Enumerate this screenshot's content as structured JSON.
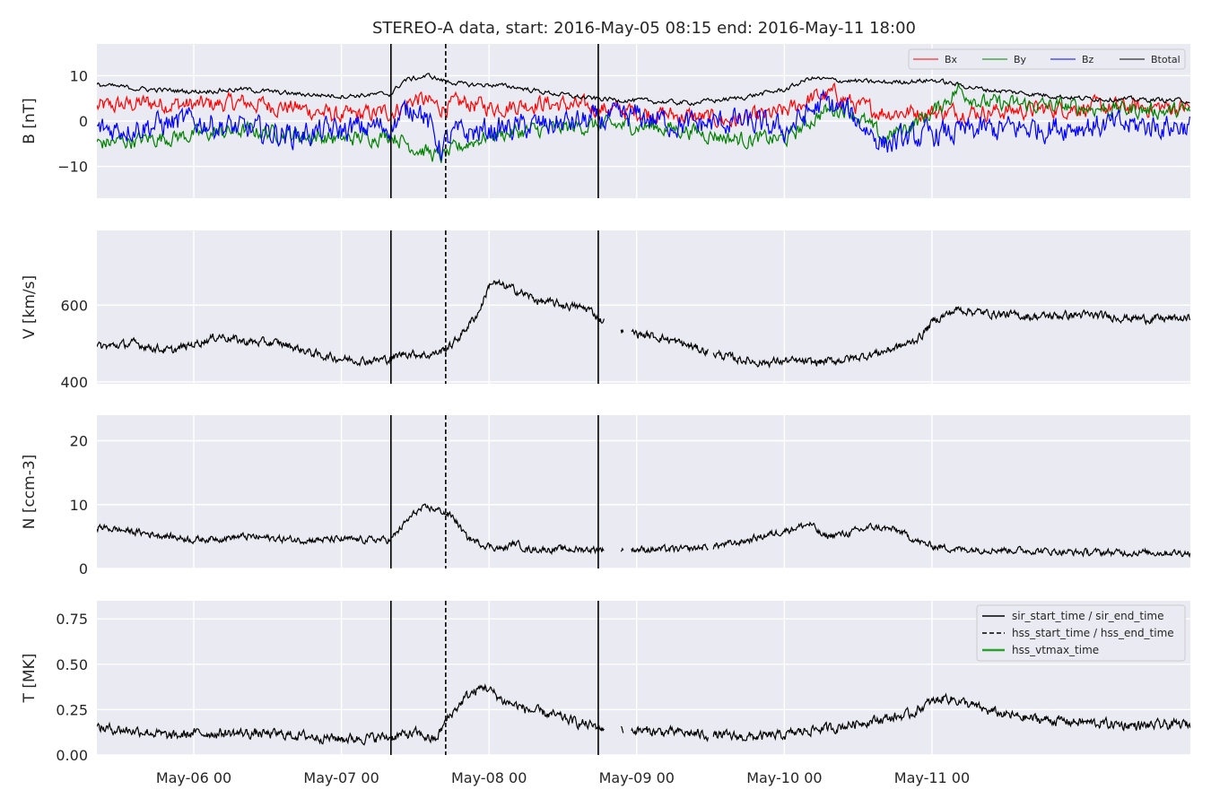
{
  "chart_data": {
    "type": "line",
    "title": "STEREO-A data, start: 2016-May-05 08:15  end: 2016-May-11 18:00",
    "x_range_hours": [
      0,
      177.75
    ],
    "x_ticks": [
      {
        "label": "May-06 00",
        "h": 15.75
      },
      {
        "label": "May-07 00",
        "h": 39.75
      },
      {
        "label": "May-08 00",
        "h": 63.75
      },
      {
        "label": "May-09 00",
        "h": 87.75
      },
      {
        "label": "May-10 00",
        "h": 111.75
      },
      {
        "label": "May-11 00",
        "h": 135.75
      }
    ],
    "events": {
      "sir_start_h": 47.8,
      "hss_start_h": 56.7,
      "sir_end_h": 81.5
    },
    "panels": [
      {
        "id": "B",
        "ylabel": "B [nT]",
        "ylim": [
          -17,
          17
        ],
        "yticks": [
          {
            "v": 10,
            "label": "10"
          },
          {
            "v": 0,
            "label": "0"
          },
          {
            "v": -10,
            "label": "−10"
          }
        ],
        "legend": [
          "Bx",
          "By",
          "Bz",
          "Btotal"
        ],
        "series": [
          {
            "name": "Bx",
            "color": "#ff0000",
            "points": [
              [
                0,
                3
              ],
              [
                8,
                4
              ],
              [
                16,
                3.5
              ],
              [
                24,
                4
              ],
              [
                32,
                3
              ],
              [
                40,
                1
              ],
              [
                47.8,
                2
              ],
              [
                52,
                5
              ],
              [
                56,
                3
              ],
              [
                60,
                4
              ],
              [
                64,
                3
              ],
              [
                72,
                4
              ],
              [
                80,
                3
              ],
              [
                88,
                2
              ],
              [
                96,
                1
              ],
              [
                104,
                0
              ],
              [
                112,
                2
              ],
              [
                116,
                5
              ],
              [
                120,
                6
              ],
              [
                124,
                3
              ],
              [
                128,
                2
              ],
              [
                136,
                2
              ],
              [
                144,
                2
              ],
              [
                160,
                3
              ],
              [
                177.75,
                3
              ]
            ]
          },
          {
            "name": "By",
            "color": "#008000",
            "points": [
              [
                0,
                -5
              ],
              [
                8,
                -4
              ],
              [
                16,
                -3
              ],
              [
                24,
                -2
              ],
              [
                32,
                -3
              ],
              [
                40,
                -4
              ],
              [
                47.8,
                -3
              ],
              [
                52,
                -6
              ],
              [
                56,
                -8
              ],
              [
                60,
                -5
              ],
              [
                64,
                -3
              ],
              [
                72,
                -2
              ],
              [
                80,
                -1
              ],
              [
                88,
                -1
              ],
              [
                96,
                -2
              ],
              [
                104,
                -4
              ],
              [
                112,
                -4
              ],
              [
                118,
                2
              ],
              [
                122,
                3
              ],
              [
                128,
                -4
              ],
              [
                136,
                2
              ],
              [
                140,
                7
              ],
              [
                144,
                4
              ],
              [
                160,
                3
              ],
              [
                177.75,
                2
              ]
            ]
          },
          {
            "name": "Bz",
            "color": "#0000ff",
            "points": [
              [
                0,
                -2
              ],
              [
                8,
                -1
              ],
              [
                16,
                0
              ],
              [
                24,
                -2
              ],
              [
                32,
                -3
              ],
              [
                40,
                -2
              ],
              [
                47.8,
                -1
              ],
              [
                52,
                4
              ],
              [
                56,
                -6
              ],
              [
                58,
                -3
              ],
              [
                64,
                -2
              ],
              [
                72,
                -1
              ],
              [
                80,
                0
              ],
              [
                88,
                1
              ],
              [
                96,
                -1
              ],
              [
                104,
                0
              ],
              [
                112,
                -2
              ],
              [
                118,
                4
              ],
              [
                122,
                2
              ],
              [
                128,
                -5
              ],
              [
                136,
                -3
              ],
              [
                144,
                -2
              ],
              [
                160,
                -1
              ],
              [
                177.75,
                -1
              ]
            ]
          },
          {
            "name": "Btotal",
            "color": "#000000",
            "points": [
              [
                0,
                8
              ],
              [
                8,
                7
              ],
              [
                16,
                6.5
              ],
              [
                24,
                7
              ],
              [
                32,
                6
              ],
              [
                40,
                5.5
              ],
              [
                47.8,
                6
              ],
              [
                50,
                9
              ],
              [
                54,
                10
              ],
              [
                56,
                9
              ],
              [
                60,
                8
              ],
              [
                64,
                8
              ],
              [
                68,
                7.5
              ],
              [
                72,
                6.5
              ],
              [
                80,
                5
              ],
              [
                88,
                4.5
              ],
              [
                96,
                4
              ],
              [
                104,
                5
              ],
              [
                112,
                7
              ],
              [
                116,
                9.5
              ],
              [
                120,
                9
              ],
              [
                128,
                8.5
              ],
              [
                136,
                9
              ],
              [
                140,
                8
              ],
              [
                144,
                7
              ],
              [
                160,
                5
              ],
              [
                177.75,
                4.5
              ]
            ]
          }
        ]
      },
      {
        "id": "V",
        "ylabel": "V [km/s]",
        "ylim": [
          395,
          795
        ],
        "yticks": [
          {
            "v": 600,
            "label": "600"
          },
          {
            "v": 400,
            "label": "400"
          }
        ],
        "series": [
          {
            "name": "V",
            "color": "#000000",
            "points": [
              [
                0,
                490
              ],
              [
                6,
                500
              ],
              [
                12,
                480
              ],
              [
                16,
                500
              ],
              [
                20,
                520
              ],
              [
                24,
                505
              ],
              [
                30,
                500
              ],
              [
                36,
                470
              ],
              [
                40,
                460
              ],
              [
                44,
                455
              ],
              [
                47.8,
                460
              ],
              [
                50,
                475
              ],
              [
                54,
                470
              ],
              [
                56,
                480
              ],
              [
                58,
                500
              ],
              [
                62,
                580
              ],
              [
                64,
                660
              ],
              [
                68,
                640
              ],
              [
                72,
                610
              ],
              [
                76,
                600
              ],
              [
                80,
                590
              ],
              [
                82,
                560
              ],
              [
                84,
                550
              ],
              [
                86,
                530
              ],
              [
                88,
                525
              ],
              [
                92,
                515
              ],
              [
                96,
                495
              ],
              [
                100,
                475
              ],
              [
                104,
                460
              ],
              [
                108,
                450
              ],
              [
                112,
                455
              ],
              [
                116,
                450
              ],
              [
                120,
                455
              ],
              [
                124,
                465
              ],
              [
                128,
                480
              ],
              [
                132,
                500
              ],
              [
                134,
                520
              ],
              [
                136,
                560
              ],
              [
                140,
                590
              ],
              [
                144,
                580
              ],
              [
                148,
                575
              ],
              [
                152,
                570
              ],
              [
                160,
                575
              ],
              [
                170,
                565
              ],
              [
                177.75,
                565
              ]
            ]
          }
        ]
      },
      {
        "id": "N",
        "ylabel": "N [ccm-3]",
        "ylim": [
          0,
          24
        ],
        "yticks": [
          {
            "v": 20,
            "label": "20"
          },
          {
            "v": 10,
            "label": "10"
          },
          {
            "v": 0,
            "label": "0"
          }
        ],
        "series": [
          {
            "name": "N",
            "color": "#000000",
            "points": [
              [
                0,
                6.5
              ],
              [
                4,
                6
              ],
              [
                8,
                5.5
              ],
              [
                12,
                5
              ],
              [
                16,
                4.5
              ],
              [
                24,
                5
              ],
              [
                32,
                4.5
              ],
              [
                40,
                4.5
              ],
              [
                47.8,
                4.5
              ],
              [
                50,
                7
              ],
              [
                52,
                9
              ],
              [
                54,
                9.5
              ],
              [
                56,
                9
              ],
              [
                58,
                8
              ],
              [
                60,
                5
              ],
              [
                62,
                4
              ],
              [
                66,
                3
              ],
              [
                68,
                4
              ],
              [
                70,
                3
              ],
              [
                74,
                3
              ],
              [
                78,
                3
              ],
              [
                82,
                3
              ],
              [
                86,
                3
              ],
              [
                90,
                3
              ],
              [
                96,
                3
              ],
              [
                100,
                3.5
              ],
              [
                104,
                4
              ],
              [
                108,
                5
              ],
              [
                112,
                6
              ],
              [
                116,
                7
              ],
              [
                118,
                5
              ],
              [
                122,
                5.5
              ],
              [
                126,
                6.5
              ],
              [
                130,
                6
              ],
              [
                134,
                4
              ],
              [
                136,
                3.5
              ],
              [
                140,
                3
              ],
              [
                144,
                3
              ],
              [
                152,
                2.8
              ],
              [
                160,
                2.5
              ],
              [
                177.75,
                2.5
              ]
            ]
          }
        ]
      },
      {
        "id": "T",
        "ylabel": "T [MK]",
        "ylim": [
          0,
          0.85
        ],
        "yticks": [
          {
            "v": 0.75,
            "label": "0.75"
          },
          {
            "v": 0.5,
            "label": "0.50"
          },
          {
            "v": 0.25,
            "label": "0.25"
          },
          {
            "v": 0,
            "label": "0.00"
          }
        ],
        "legend": [
          "sir_start_time / sir_end_time",
          "hss_start_time / hss_end_time",
          "hss_vtmax_time"
        ],
        "legend_colors": [
          "#000000",
          "#000000",
          "#2ca02c"
        ],
        "series": [
          {
            "name": "T",
            "color": "#000000",
            "points": [
              [
                0,
                0.15
              ],
              [
                8,
                0.13
              ],
              [
                12,
                0.1
              ],
              [
                16,
                0.12
              ],
              [
                24,
                0.12
              ],
              [
                32,
                0.11
              ],
              [
                40,
                0.09
              ],
              [
                47.8,
                0.1
              ],
              [
                52,
                0.12
              ],
              [
                55,
                0.08
              ],
              [
                57,
                0.2
              ],
              [
                60,
                0.32
              ],
              [
                63,
                0.38
              ],
              [
                66,
                0.3
              ],
              [
                70,
                0.25
              ],
              [
                74,
                0.22
              ],
              [
                78,
                0.18
              ],
              [
                82,
                0.15
              ],
              [
                86,
                0.14
              ],
              [
                90,
                0.13
              ],
              [
                96,
                0.12
              ],
              [
                100,
                0.11
              ],
              [
                104,
                0.1
              ],
              [
                108,
                0.1
              ],
              [
                112,
                0.11
              ],
              [
                116,
                0.14
              ],
              [
                120,
                0.15
              ],
              [
                124,
                0.18
              ],
              [
                128,
                0.2
              ],
              [
                132,
                0.22
              ],
              [
                135,
                0.28
              ],
              [
                138,
                0.32
              ],
              [
                140,
                0.3
              ],
              [
                144,
                0.25
              ],
              [
                148,
                0.22
              ],
              [
                152,
                0.2
              ],
              [
                160,
                0.18
              ],
              [
                170,
                0.16
              ],
              [
                177.75,
                0.17
              ]
            ]
          }
        ]
      }
    ]
  }
}
